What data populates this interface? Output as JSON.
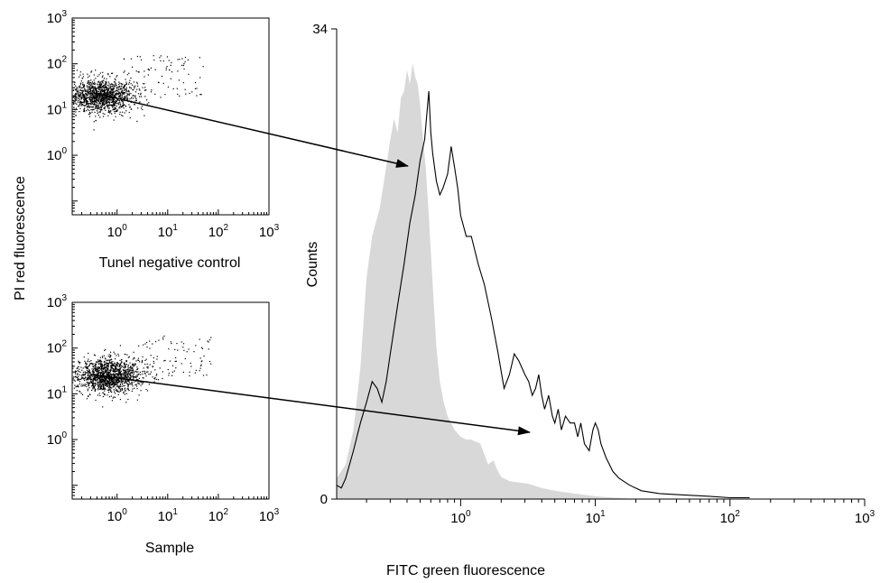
{
  "chart_data": [
    {
      "type": "scatter",
      "xlabel": "Tunel negative control",
      "ylabel": "PI red fluorescence",
      "x_scale": "log",
      "y_scale": "log",
      "xlim": [
        0.13,
        1000
      ],
      "ylim": [
        0.05,
        1000
      ],
      "x_ticks": [
        {
          "base": "10",
          "exp": "0",
          "value": 1
        },
        {
          "base": "10",
          "exp": "1",
          "value": 10
        },
        {
          "base": "10",
          "exp": "2",
          "value": 100
        },
        {
          "base": "10",
          "exp": "3",
          "value": 1000
        }
      ],
      "y_ticks": [
        {
          "base": "10",
          "exp": "0",
          "value": 1
        },
        {
          "base": "10",
          "exp": "1",
          "value": 10
        },
        {
          "base": "10",
          "exp": "2",
          "value": 100
        },
        {
          "base": "10",
          "exp": "3",
          "value": 1000
        }
      ],
      "cluster": {
        "x_center": 0.5,
        "y_center": 20,
        "n_points": 1400
      }
    },
    {
      "type": "scatter",
      "xlabel": "Sample",
      "ylabel": "PI red fluorescence",
      "x_scale": "log",
      "y_scale": "log",
      "xlim": [
        0.13,
        1000
      ],
      "ylim": [
        0.05,
        1000
      ],
      "x_ticks": [
        {
          "base": "10",
          "exp": "0",
          "value": 1
        },
        {
          "base": "10",
          "exp": "1",
          "value": 10
        },
        {
          "base": "10",
          "exp": "2",
          "value": 100
        },
        {
          "base": "10",
          "exp": "3",
          "value": 1000
        }
      ],
      "y_ticks": [
        {
          "base": "10",
          "exp": "0",
          "value": 1
        },
        {
          "base": "10",
          "exp": "1",
          "value": 10
        },
        {
          "base": "10",
          "exp": "2",
          "value": 100
        },
        {
          "base": "10",
          "exp": "3",
          "value": 1000
        }
      ],
      "cluster": {
        "x_center": 0.7,
        "y_center": 25,
        "n_points": 1500
      }
    },
    {
      "type": "area",
      "xlabel": "FITC green fluorescence",
      "ylabel": "Counts",
      "x_scale": "log",
      "xlim": [
        0.12,
        1000
      ],
      "ylim": [
        0,
        34
      ],
      "x_ticks": [
        {
          "base": "10",
          "exp": "0",
          "value": 1
        },
        {
          "base": "10",
          "exp": "1",
          "value": 10
        },
        {
          "base": "10",
          "exp": "2",
          "value": 100
        },
        {
          "base": "10",
          "exp": "3",
          "value": 1000
        }
      ],
      "y_ticks": [
        {
          "label": "0",
          "value": 0
        },
        {
          "label": "34",
          "value": 34
        }
      ],
      "series": [
        {
          "style": "filled gray",
          "color": "#d8d8d8",
          "x": [
            0.12,
            0.14,
            0.16,
            0.18,
            0.2,
            0.22,
            0.25,
            0.28,
            0.3,
            0.32,
            0.34,
            0.36,
            0.38,
            0.4,
            0.42,
            0.44,
            0.46,
            0.48,
            0.5,
            0.52,
            0.55,
            0.58,
            0.62,
            0.66,
            0.7,
            0.75,
            0.8,
            0.9,
            1.0,
            1.1,
            1.2,
            1.4,
            1.6,
            1.75,
            1.85,
            2.0,
            2.3,
            2.7,
            3.2,
            4.0,
            5.0,
            7.0,
            10.0,
            14.0,
            20.0
          ],
          "y": [
            1.5,
            2.5,
            5,
            9.5,
            16,
            19,
            21,
            24,
            26,
            27.5,
            26.5,
            29,
            29.5,
            31,
            30,
            31.5,
            30.5,
            30,
            28.5,
            26.5,
            24,
            20.5,
            15.5,
            11,
            8.5,
            7,
            6,
            5,
            4.5,
            4.3,
            4.3,
            4,
            2.5,
            2.8,
            2.2,
            1.6,
            1.3,
            1.2,
            1.1,
            0.8,
            0.6,
            0.4,
            0.2,
            0.1,
            0
          ]
        },
        {
          "style": "line",
          "color": "#000000",
          "x": [
            0.12,
            0.13,
            0.14,
            0.16,
            0.18,
            0.2,
            0.22,
            0.24,
            0.26,
            0.28,
            0.3,
            0.34,
            0.38,
            0.42,
            0.46,
            0.5,
            0.54,
            0.58,
            0.6,
            0.62,
            0.66,
            0.7,
            0.74,
            0.8,
            0.85,
            0.9,
            0.95,
            1.0,
            1.1,
            1.2,
            1.35,
            1.5,
            1.7,
            1.9,
            2.1,
            2.3,
            2.5,
            2.7,
            3.0,
            3.2,
            3.4,
            3.6,
            3.8,
            4.0,
            4.2,
            4.5,
            4.8,
            5.0,
            5.3,
            5.6,
            6.0,
            6.5,
            7.0,
            7.4,
            7.8,
            8.3,
            9.0,
            9.6,
            10.0,
            10.5,
            11.0,
            12.0,
            13.5,
            15.0,
            18.0,
            22.0,
            30.0,
            45.0,
            70.0,
            100.0,
            140.0
          ],
          "y": [
            1,
            0.8,
            1.5,
            3.5,
            5.5,
            7,
            8.5,
            8,
            7,
            8.5,
            10.5,
            14,
            17,
            20,
            22,
            24.5,
            26,
            29.5,
            26.5,
            25,
            23,
            22,
            22.5,
            23.5,
            25.5,
            24,
            22.5,
            20.5,
            19,
            19,
            17,
            15.5,
            13,
            10.5,
            8,
            9,
            10.5,
            10,
            9,
            8.5,
            7.5,
            8,
            9,
            7.5,
            6.5,
            7.5,
            6,
            5.5,
            6.5,
            5,
            6,
            5.5,
            5.5,
            4.5,
            5.5,
            4,
            3.5,
            5,
            5.5,
            5,
            4,
            3,
            2,
            1.5,
            1,
            0.6,
            0.4,
            0.3,
            0.2,
            0.1,
            0.1
          ]
        }
      ]
    }
  ]
}
